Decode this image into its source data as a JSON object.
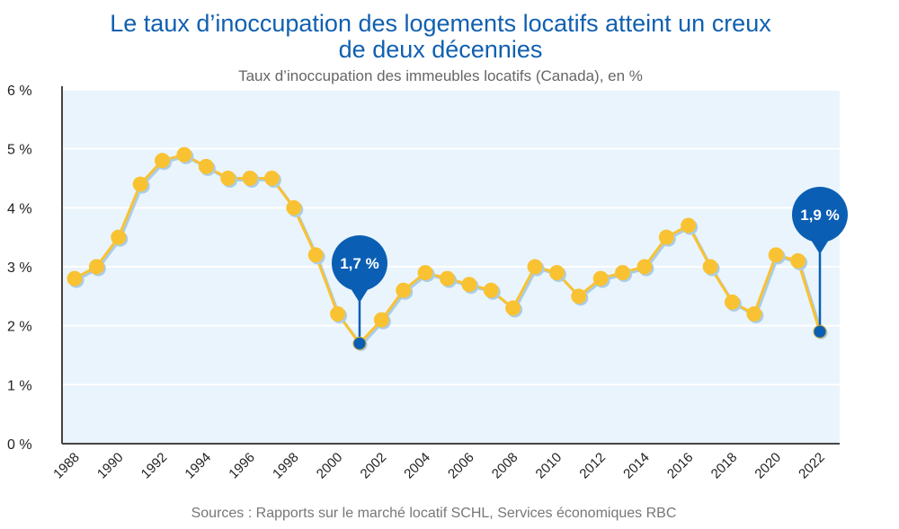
{
  "chart_data": {
    "type": "line",
    "title_line1": "Le taux d’inoccupation des logements locatifs atteint un creux",
    "title_line2": "de deux décennies",
    "subtitle": "Taux d’inoccupation des immeubles locatifs (Canada), en %",
    "source": "Sources : Rapports sur le marché locatif SCHL, Services économiques RBC",
    "xlabel": "",
    "ylabel": "",
    "ylim": [
      0,
      6
    ],
    "yticks": [
      0,
      1,
      2,
      3,
      4,
      5,
      6
    ],
    "ytick_labels": [
      "0 %",
      "1 %",
      "2 %",
      "3 %",
      "4 %",
      "5 %",
      "6 %"
    ],
    "xtick_labels": [
      "1988",
      "1990",
      "1992",
      "1994",
      "1996",
      "1998",
      "2000",
      "2002",
      "2004",
      "2006",
      "2008",
      "2010",
      "2012",
      "2014",
      "2016",
      "2018",
      "2020",
      "2022"
    ],
    "grid": true,
    "x": [
      1988,
      1989,
      1990,
      1991,
      1992,
      1993,
      1994,
      1995,
      1996,
      1997,
      1998,
      1999,
      2000,
      2001,
      2002,
      2003,
      2004,
      2005,
      2006,
      2007,
      2008,
      2009,
      2010,
      2011,
      2012,
      2013,
      2014,
      2015,
      2016,
      2017,
      2018,
      2019,
      2020,
      2021,
      2022
    ],
    "series": [
      {
        "name": "Taux d’inoccupation",
        "values": [
          2.8,
          3.0,
          3.5,
          4.4,
          4.8,
          4.9,
          4.7,
          4.5,
          4.5,
          4.5,
          4.0,
          3.2,
          2.2,
          1.7,
          2.1,
          2.6,
          2.9,
          2.8,
          2.7,
          2.6,
          2.3,
          3.0,
          2.9,
          2.5,
          2.8,
          2.9,
          3.0,
          3.5,
          3.7,
          3.0,
          2.4,
          2.2,
          3.2,
          3.1,
          1.9
        ]
      }
    ],
    "annotations": [
      {
        "x": 2001,
        "y": 1.7,
        "label": "1,7 %"
      },
      {
        "x": 2022,
        "y": 1.9,
        "label": "1,9 %"
      }
    ],
    "colors": {
      "line": "#f9c232",
      "shadow": "#a9cde8",
      "highlight": "#0a5fb4",
      "plot_bg": "#eaf4fc",
      "grid": "#ffffff",
      "title": "#1060b0"
    }
  }
}
